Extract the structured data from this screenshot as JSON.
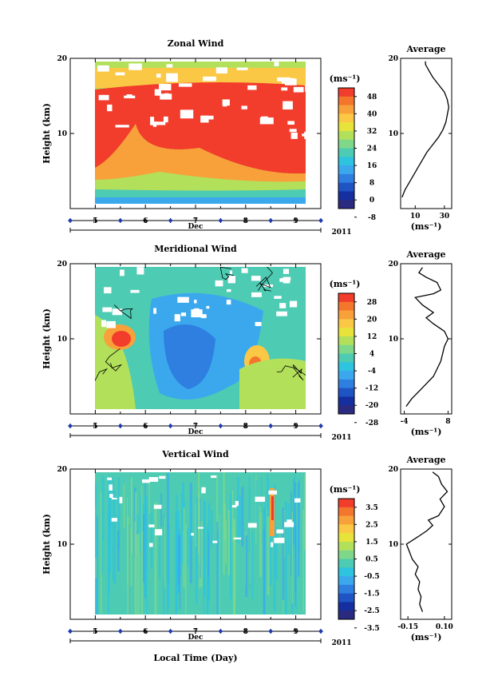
{
  "chart_data": [
    {
      "type": "heatmap",
      "title": "Zonal Wind",
      "ylabel": "Height (km)",
      "ylim": [
        0,
        20
      ],
      "y_ticks": [
        "20",
        "10"
      ],
      "x_ticks": [
        "5",
        "6",
        "7",
        "8",
        "9"
      ],
      "x_month": "Dec",
      "year": "2011",
      "xlim": [
        4.5,
        9.5
      ],
      "colorbar": {
        "unit": "(ms⁻¹)",
        "levels": [
          "48",
          "40",
          "32",
          "24",
          "16",
          "8",
          "0",
          "-8"
        ],
        "colors": [
          "#f23c2c",
          "#f4762c",
          "#f8a13a",
          "#fbc845",
          "#e8e33b",
          "#b2e05b",
          "#7fd88a",
          "#4ecbb3",
          "#2ec3de",
          "#3ba8ee",
          "#2e7fe0",
          "#1f54c5",
          "#152fa0",
          "#2a2a80"
        ]
      },
      "profile": {
        "title": "Average",
        "x_ticks": [
          "10",
          "30"
        ],
        "xlim": [
          0,
          35
        ],
        "xlabel": "(ms⁻¹)",
        "y_ticks": [
          "20",
          "10"
        ],
        "points": [
          [
            1,
            1.5
          ],
          [
            3,
            2.5
          ],
          [
            6,
            3.5
          ],
          [
            9,
            4.5
          ],
          [
            12,
            5.5
          ],
          [
            15,
            6.5
          ],
          [
            18,
            7.5
          ],
          [
            22,
            8.5
          ],
          [
            26,
            9.5
          ],
          [
            29,
            10.5
          ],
          [
            31,
            11.5
          ],
          [
            32,
            12.5
          ],
          [
            33,
            13.5
          ],
          [
            32,
            14.5
          ],
          [
            30,
            15.5
          ],
          [
            26,
            16.5
          ],
          [
            22,
            17.5
          ],
          [
            19,
            18.5
          ],
          [
            17,
            19.2
          ],
          [
            17,
            19.6
          ]
        ]
      }
    },
    {
      "type": "heatmap",
      "title": "Meridional Wind",
      "ylabel": "Height (km)",
      "ylim": [
        0,
        20
      ],
      "y_ticks": [
        "20",
        "10"
      ],
      "x_ticks": [
        "5",
        "6",
        "7",
        "8",
        "9"
      ],
      "x_month": "Dec",
      "year": "2011",
      "xlim": [
        4.5,
        9.5
      ],
      "colorbar": {
        "unit": "(ms⁻¹)",
        "levels": [
          "28",
          "20",
          "12",
          "4",
          "-4",
          "-12",
          "-20",
          "-28"
        ],
        "colors": [
          "#f23c2c",
          "#f4762c",
          "#f8a13a",
          "#fbc845",
          "#e8e33b",
          "#b2e05b",
          "#7fd88a",
          "#4ecbb3",
          "#2ec3de",
          "#3ba8ee",
          "#2e7fe0",
          "#1f54c5",
          "#152fa0",
          "#2a2a80"
        ]
      },
      "profile": {
        "title": "Average",
        "x_ticks": [
          "-4",
          "8"
        ],
        "xlim": [
          -5,
          9
        ],
        "xlabel": "(ms⁻¹)",
        "y_ticks": [
          "20",
          "10"
        ],
        "points": [
          [
            -3.5,
            1
          ],
          [
            -2,
            2
          ],
          [
            0,
            3
          ],
          [
            2,
            4
          ],
          [
            4,
            5
          ],
          [
            5,
            6
          ],
          [
            6,
            7
          ],
          [
            6.5,
            8
          ],
          [
            7,
            9
          ],
          [
            8,
            10
          ],
          [
            7,
            11
          ],
          [
            4,
            12
          ],
          [
            2,
            12.8
          ],
          [
            4,
            13.5
          ],
          [
            1,
            14.5
          ],
          [
            -1,
            15.5
          ],
          [
            4,
            16
          ],
          [
            6,
            16.5
          ],
          [
            5,
            17.5
          ],
          [
            2,
            18.2
          ],
          [
            0,
            18.8
          ],
          [
            1,
            19.5
          ]
        ]
      }
    },
    {
      "type": "heatmap",
      "title": "Vertical Wind",
      "ylabel": "Height (km)",
      "ylim": [
        0,
        20
      ],
      "y_ticks": [
        "20",
        "10"
      ],
      "x_ticks": [
        "5",
        "6",
        "7",
        "8",
        "9"
      ],
      "x_month": "Dec",
      "year": "2011",
      "xlim": [
        4.5,
        9.5
      ],
      "xlabel": "Local Time (Day)",
      "colorbar": {
        "unit": "(ms⁻¹)",
        "levels": [
          "3.5",
          "2.5",
          "1.5",
          "0.5",
          "-0.5",
          "-1.5",
          "-2.5",
          "-3.5"
        ],
        "colors": [
          "#f23c2c",
          "#f4762c",
          "#f8a13a",
          "#fbc845",
          "#e8e33b",
          "#b2e05b",
          "#7fd88a",
          "#4ecbb3",
          "#2ec3de",
          "#3ba8ee",
          "#2e7fe0",
          "#1f54c5",
          "#152fa0",
          "#2a2a80"
        ]
      },
      "profile": {
        "title": "Average",
        "x_ticks": [
          "-0.15",
          "0.10"
        ],
        "xlim": [
          -0.2,
          0.15
        ],
        "xlabel": "(ms⁻¹)",
        "y_ticks": [
          "20",
          "10"
        ],
        "points": [
          [
            -0.05,
            1
          ],
          [
            -0.07,
            2
          ],
          [
            -0.06,
            3
          ],
          [
            -0.08,
            4
          ],
          [
            -0.07,
            5
          ],
          [
            -0.1,
            6
          ],
          [
            -0.08,
            7
          ],
          [
            -0.12,
            8
          ],
          [
            -0.14,
            9
          ],
          [
            -0.16,
            10
          ],
          [
            -0.08,
            11
          ],
          [
            -0.02,
            11.8
          ],
          [
            0.02,
            12.5
          ],
          [
            -0.01,
            13.2
          ],
          [
            0.06,
            13.8
          ],
          [
            0.1,
            15
          ],
          [
            0.07,
            16
          ],
          [
            0.12,
            17
          ],
          [
            0.08,
            18
          ],
          [
            0.06,
            19
          ],
          [
            0.02,
            19.6
          ]
        ]
      }
    }
  ]
}
